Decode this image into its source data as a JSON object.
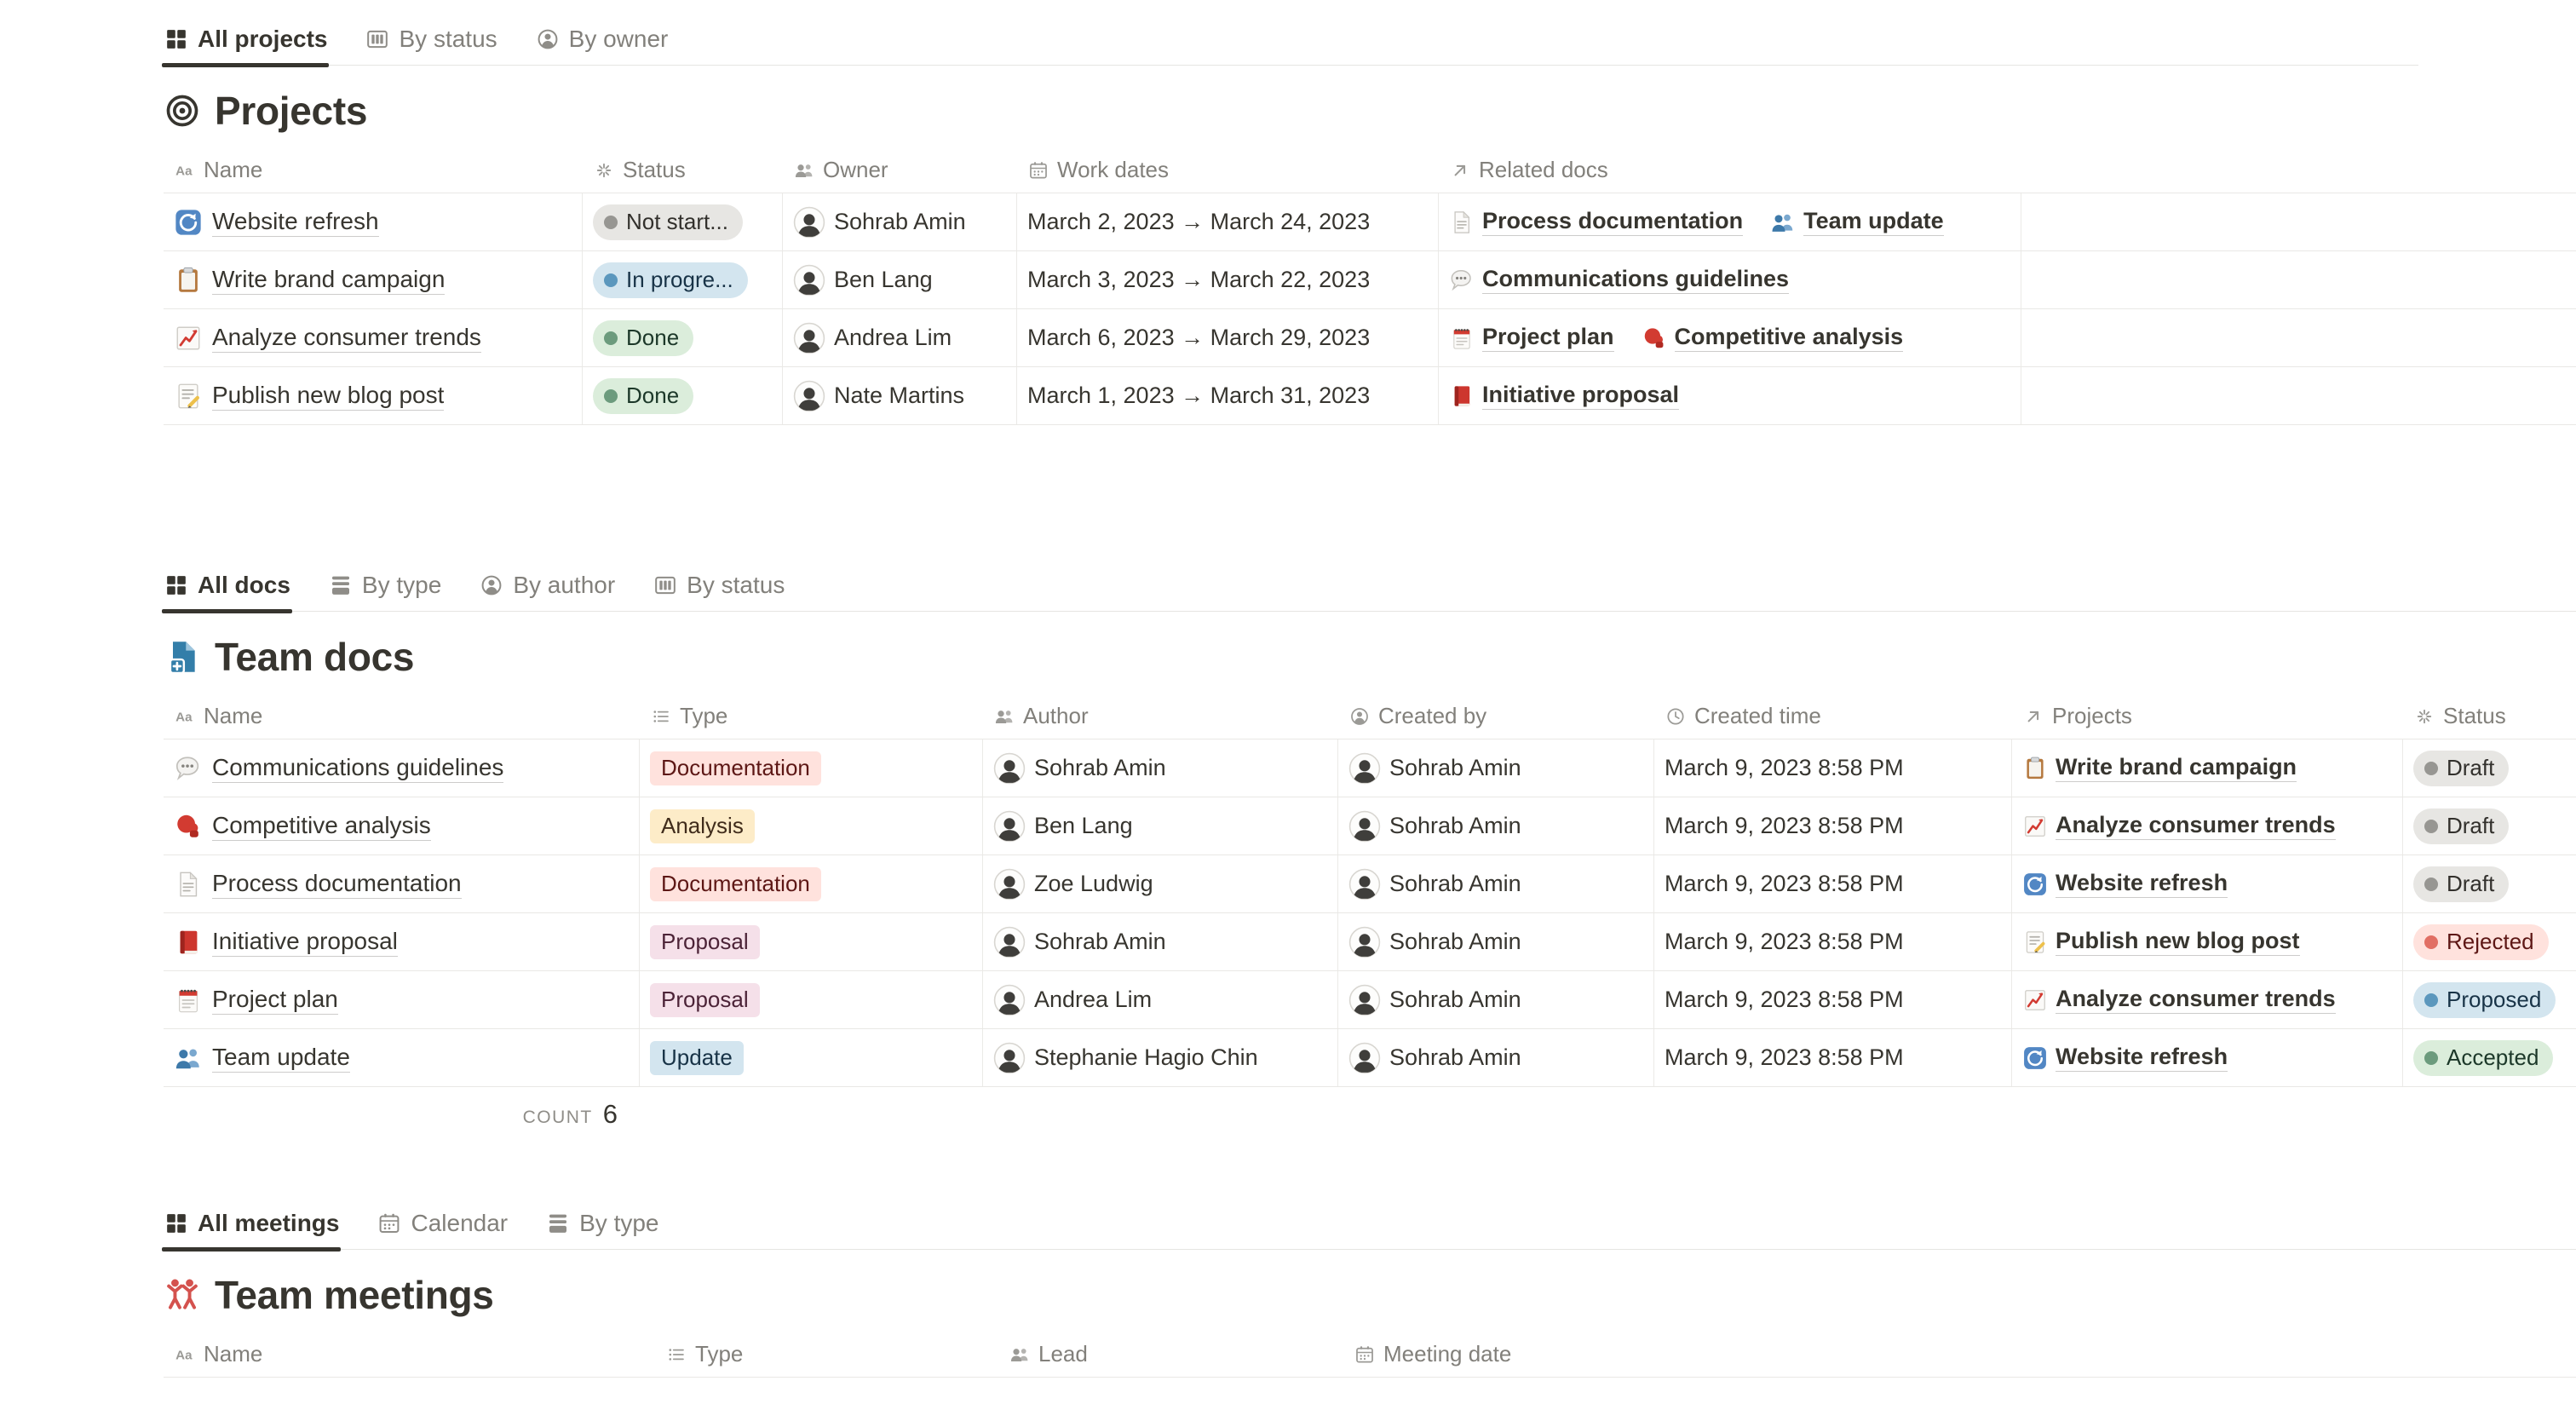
{
  "colors": {
    "page_bg": "#ffffff",
    "text": "#37352f",
    "secondary_text": "#82807b",
    "row_border": "#e9e8e5",
    "active_tab_underline": "#37352f",
    "palette": {
      "grey": {
        "bg": "#e7e6e3",
        "dot": "#979692",
        "text": "#32302c"
      },
      "blue": {
        "bg": "#d3e5ef",
        "dot": "#5b97bd",
        "text": "#183347"
      },
      "green": {
        "bg": "#dbeddb",
        "dot": "#6c9b7d",
        "text": "#1c3829"
      },
      "red": {
        "bg": "#ffe2dd",
        "dot": "#e16f64",
        "text": "#5d1715"
      },
      "yellow": {
        "bg": "#fdecc8",
        "dot": "#cb912f",
        "text": "#402c1b"
      },
      "pink": {
        "bg": "#f5e0e9",
        "dot": "#c14c8a",
        "text": "#4c2337"
      }
    }
  },
  "sections": {
    "projects": {
      "tabs": [
        {
          "label": "All projects",
          "icon": "grid-icon",
          "active": true
        },
        {
          "label": "By status",
          "icon": "board-icon",
          "active": false
        },
        {
          "label": "By owner",
          "icon": "person-circle-icon",
          "active": false
        }
      ],
      "title": {
        "icon": "target-icon",
        "text": "Projects"
      },
      "columns": [
        {
          "label": "Name",
          "icon": "text-icon"
        },
        {
          "label": "Status",
          "icon": "burst-icon"
        },
        {
          "label": "Owner",
          "icon": "people-icon"
        },
        {
          "label": "Work dates",
          "icon": "calendar-icon"
        },
        {
          "label": "Related docs",
          "icon": "arrow-up-right-icon"
        }
      ],
      "rows": [
        {
          "icon": "website-refresh-icon",
          "name": "Website refresh",
          "status": {
            "label": "Not start...",
            "color": "grey"
          },
          "owner": "Sohrab Amin",
          "work_dates": "March 2, 2023 → March 24, 2023",
          "related_docs": [
            {
              "icon": "page-icon",
              "label": "Process documentation"
            },
            {
              "icon": "people-blue-icon",
              "label": "Team update"
            }
          ]
        },
        {
          "icon": "clipboard-icon",
          "name": "Write brand campaign",
          "status": {
            "label": "In progre...",
            "color": "blue"
          },
          "owner": "Ben Lang",
          "work_dates": "March 3, 2023 → March 22, 2023",
          "related_docs": [
            {
              "icon": "speech-bubble-icon",
              "label": "Communications guidelines"
            }
          ]
        },
        {
          "icon": "chart-up-icon",
          "name": "Analyze consumer trends",
          "status": {
            "label": "Done",
            "color": "green"
          },
          "owner": "Andrea Lim",
          "work_dates": "March 6, 2023 → March 29, 2023",
          "related_docs": [
            {
              "icon": "spiral-notepad-icon",
              "label": "Project plan"
            },
            {
              "icon": "boxing-glove-icon",
              "label": "Competitive analysis"
            }
          ]
        },
        {
          "icon": "memo-icon",
          "name": "Publish new blog post",
          "status": {
            "label": "Done",
            "color": "green"
          },
          "owner": "Nate Martins",
          "work_dates": "March 1, 2023 → March 31, 2023",
          "related_docs": [
            {
              "icon": "red-book-icon",
              "label": "Initiative proposal"
            }
          ]
        }
      ]
    },
    "docs": {
      "tabs": [
        {
          "label": "All docs",
          "icon": "grid-icon",
          "active": true
        },
        {
          "label": "By type",
          "icon": "stack-icon",
          "active": false
        },
        {
          "label": "By author",
          "icon": "person-circle-icon",
          "active": false
        },
        {
          "label": "By status",
          "icon": "board-icon",
          "active": false
        }
      ],
      "title": {
        "icon": "blue-doc-icon",
        "text": "Team docs"
      },
      "columns": [
        {
          "label": "Name",
          "icon": "text-icon"
        },
        {
          "label": "Type",
          "icon": "list-icon"
        },
        {
          "label": "Author",
          "icon": "people-icon"
        },
        {
          "label": "Created by",
          "icon": "person-circle-icon"
        },
        {
          "label": "Created time",
          "icon": "clock-icon"
        },
        {
          "label": "Projects",
          "icon": "arrow-up-right-icon"
        },
        {
          "label": "Status",
          "icon": "burst-icon"
        }
      ],
      "rows": [
        {
          "icon": "speech-bubble-icon",
          "name": "Communications guidelines",
          "type": {
            "label": "Documentation",
            "color": "red"
          },
          "author": "Sohrab Amin",
          "created_by": "Sohrab Amin",
          "created_time": "March 9, 2023 8:58 PM",
          "project": {
            "icon": "clipboard-icon",
            "label": "Write brand campaign"
          },
          "status": {
            "label": "Draft",
            "color": "grey"
          }
        },
        {
          "icon": "boxing-glove-icon",
          "name": "Competitive analysis",
          "type": {
            "label": "Analysis",
            "color": "yellow"
          },
          "author": "Ben Lang",
          "created_by": "Sohrab Amin",
          "created_time": "March 9, 2023 8:58 PM",
          "project": {
            "icon": "chart-up-icon",
            "label": "Analyze consumer trends"
          },
          "status": {
            "label": "Draft",
            "color": "grey"
          }
        },
        {
          "icon": "page-icon",
          "name": "Process documentation",
          "type": {
            "label": "Documentation",
            "color": "red"
          },
          "author": "Zoe Ludwig",
          "created_by": "Sohrab Amin",
          "created_time": "March 9, 2023 8:58 PM",
          "project": {
            "icon": "website-refresh-icon",
            "label": "Website refresh"
          },
          "status": {
            "label": "Draft",
            "color": "grey"
          }
        },
        {
          "icon": "red-book-icon",
          "name": "Initiative proposal",
          "type": {
            "label": "Proposal",
            "color": "pink"
          },
          "author": "Sohrab Amin",
          "created_by": "Sohrab Amin",
          "created_time": "March 9, 2023 8:58 PM",
          "project": {
            "icon": "memo-icon",
            "label": "Publish new blog post"
          },
          "status": {
            "label": "Rejected",
            "color": "red"
          }
        },
        {
          "icon": "spiral-notepad-icon",
          "name": "Project plan",
          "type": {
            "label": "Proposal",
            "color": "pink"
          },
          "author": "Andrea Lim",
          "created_by": "Sohrab Amin",
          "created_time": "March 9, 2023 8:58 PM",
          "project": {
            "icon": "chart-up-icon",
            "label": "Analyze consumer trends"
          },
          "status": {
            "label": "Proposed",
            "color": "blue"
          }
        },
        {
          "icon": "people-blue-icon",
          "name": "Team update",
          "type": {
            "label": "Update",
            "color": "blue"
          },
          "author": "Stephanie Hagio Chin",
          "created_by": "Sohrab Amin",
          "created_time": "March 9, 2023 8:58 PM",
          "project": {
            "icon": "website-refresh-icon",
            "label": "Website refresh"
          },
          "status": {
            "label": "Accepted",
            "color": "green"
          }
        }
      ],
      "count": {
        "label": "COUNT",
        "value": "6"
      }
    },
    "meetings": {
      "tabs": [
        {
          "label": "All meetings",
          "icon": "grid-icon",
          "active": true
        },
        {
          "label": "Calendar",
          "icon": "calendar-tab-icon",
          "active": false
        },
        {
          "label": "By type",
          "icon": "stack-icon",
          "active": false
        }
      ],
      "title": {
        "icon": "meeting-people-icon",
        "text": "Team meetings"
      },
      "columns": [
        {
          "label": "Name",
          "icon": "text-icon"
        },
        {
          "label": "Type",
          "icon": "list-icon"
        },
        {
          "label": "Lead",
          "icon": "people-icon"
        },
        {
          "label": "Meeting date",
          "icon": "calendar-icon"
        }
      ]
    }
  }
}
